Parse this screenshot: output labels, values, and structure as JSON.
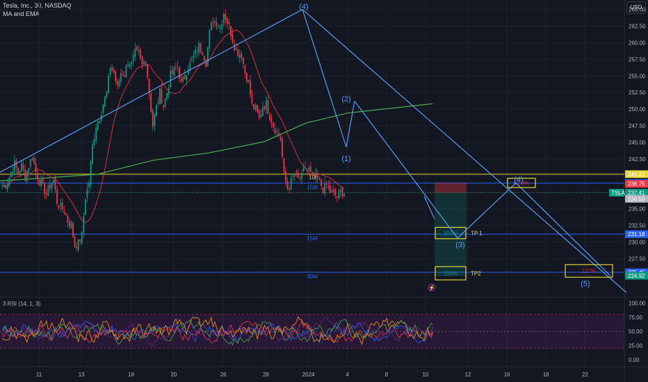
{
  "header": {
    "title": "Tesla, Inc., 30, NASDAQ",
    "indicator": "MA and EMA",
    "currency": "USD"
  },
  "chart_data": [
    {
      "type": "candlestick",
      "symbol": "TSLA",
      "x_ticks": [
        {
          "label": "11",
          "bar": 10
        },
        {
          "label": "13",
          "bar": 22
        },
        {
          "label": "18",
          "bar": 36
        },
        {
          "label": "20",
          "bar": 48
        },
        {
          "label": "26",
          "bar": 62
        },
        {
          "label": "28",
          "bar": 74
        },
        {
          "label": "2024",
          "bar": 86
        },
        {
          "label": "4",
          "bar": 97
        },
        {
          "label": "8",
          "bar": 108
        },
        {
          "label": "10",
          "bar": 119
        },
        {
          "label": "12",
          "bar": 131
        },
        {
          "label": "16",
          "bar": 142
        },
        {
          "label": "18",
          "bar": 153
        },
        {
          "label": "22",
          "bar": 164
        }
      ],
      "y_ticks": [
        225,
        227.5,
        230,
        232.5,
        235,
        237.5,
        240,
        242.5,
        245,
        247.5,
        250,
        252.5,
        255,
        257.5,
        260,
        262.5,
        265
      ],
      "ylim": [
        222,
        266
      ],
      "closes": [
        238.5,
        239,
        240.5,
        241.8,
        240.3,
        241.5,
        239.8,
        241.5,
        243,
        240.5,
        239.2,
        238.3,
        237.2,
        238.5,
        239.3,
        236,
        235.2,
        234.8,
        233.2,
        232.5,
        229.5,
        229.8,
        231,
        236.8,
        239,
        244.5,
        247.5,
        248.8,
        250.8,
        252.5,
        256.3,
        255.5,
        253.2,
        255.5,
        255.2,
        257.2,
        256.8,
        258.5,
        258.2,
        256.5,
        257.5,
        252.5,
        247.5,
        250.3,
        252.5,
        250.5,
        252.5,
        255,
        255.8,
        256.5,
        253.8,
        254.8,
        256.5,
        257.2,
        258.5,
        259.5,
        258.8,
        257,
        261.5,
        263.5,
        263,
        262.2,
        264.5,
        263.2,
        261.5,
        259.5,
        258.5,
        258.2,
        255.5,
        254,
        250.5,
        250,
        248.5,
        250.5,
        250.8,
        249,
        247.5,
        246.5,
        245.5,
        240,
        238,
        239,
        240.3,
        239.5,
        239.8,
        241.3,
        240.8,
        239.5,
        239.8,
        239,
        238,
        238.5,
        237.5,
        237.2,
        236.8,
        237.6,
        237.41
      ],
      "last_price": 237.41,
      "price_labels": [
        {
          "value": "240.21",
          "bg": "#e6d53b",
          "fg": "#131722"
        },
        {
          "value": "238.87",
          "bg": "#2962ff",
          "fg": "#ffffff"
        },
        {
          "value": "238.75",
          "bg": "#f23645",
          "fg": "#ffffff"
        },
        {
          "value": "237.41",
          "bg": "#089981",
          "fg": "#ffffff"
        },
        {
          "value": "236.50",
          "bg": "#b2b5be",
          "fg": "#131722"
        },
        {
          "value": "231.18",
          "bg": "#2962ff",
          "fg": "#ffffff"
        },
        {
          "value": "225.45",
          "bg": "#2962ff",
          "fg": "#ffffff"
        },
        {
          "value": "224.92",
          "bg": "#089981",
          "fg": "#ffffff"
        }
      ],
      "levels": [
        {
          "value": 240.21,
          "label": "1D",
          "color": "#e6d53b"
        },
        {
          "value": 238.87,
          "label": "15M",
          "color": "#2962ff"
        },
        {
          "value": 231.18,
          "label": "15M",
          "color": "#2962ff"
        },
        {
          "value": 225.45,
          "label": "30M",
          "color": "#2962ff"
        }
      ],
      "targets": [
        {
          "label": "TP 1",
          "pct": "100%"
        },
        {
          "label": "TP2",
          "pct": "150%"
        }
      ],
      "waves": [
        "(4)",
        "(2)",
        "(1)",
        "(3)",
        "(4)",
        "(5)"
      ],
      "boxes": [
        "61.8%",
        "127%"
      ],
      "series_colors": {
        "up": "#089981",
        "down": "#f23645",
        "ma_red": "#f23645",
        "ma_green": "#4caf50",
        "lines": "#5b9cf6",
        "levels": "#e6d53b"
      }
    },
    {
      "type": "line",
      "title": "3 RSI (14, 1, 3)",
      "y_ticks": [
        0,
        25,
        50,
        75,
        100
      ],
      "ylim": [
        -10,
        108
      ],
      "bands": [
        20,
        80
      ],
      "series_colors": [
        "#2962ff",
        "#f23645",
        "#ff9800",
        "#4caf50",
        "#9c27b0"
      ]
    }
  ]
}
